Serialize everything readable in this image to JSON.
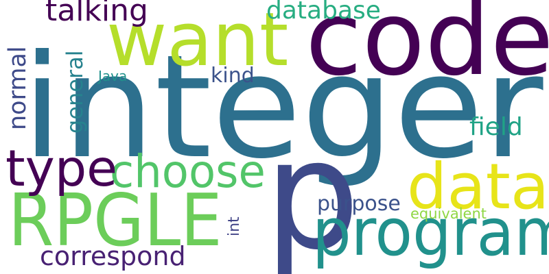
{
  "words": [
    {
      "text": "integer",
      "color": "#2d708e",
      "rotated": false
    },
    {
      "text": "code",
      "color": "#440154",
      "rotated": false
    },
    {
      "text": "want",
      "color": "#b5de2b",
      "rotated": false
    },
    {
      "text": "p",
      "color": "#3e4a89",
      "rotated": false
    },
    {
      "text": "RPGLE",
      "color": "#6ccd5a",
      "rotated": false
    },
    {
      "text": "program",
      "color": "#21918c",
      "rotated": false
    },
    {
      "text": "data",
      "color": "#e7e419",
      "rotated": false
    },
    {
      "text": "choose",
      "color": "#52c569",
      "rotated": false
    },
    {
      "text": "type",
      "color": "#440154",
      "rotated": false
    },
    {
      "text": "talking",
      "color": "#440154",
      "rotated": false
    },
    {
      "text": "database",
      "color": "#27ad81",
      "rotated": false
    },
    {
      "text": "correspond",
      "color": "#482173",
      "rotated": false
    },
    {
      "text": "purpose",
      "color": "#3b528b",
      "rotated": false
    },
    {
      "text": "field",
      "color": "#20a386",
      "rotated": false
    },
    {
      "text": "normal",
      "color": "#3e4a89",
      "rotated": true
    },
    {
      "text": "general",
      "color": "#26828e",
      "rotated": true
    },
    {
      "text": "kind",
      "color": "#3b528b",
      "rotated": false
    },
    {
      "text": "int",
      "color": "#414487",
      "rotated": true
    },
    {
      "text": "equivalent",
      "color": "#8fd744",
      "rotated": false
    },
    {
      "text": "Java",
      "color": "#21918c",
      "rotated": false
    }
  ]
}
